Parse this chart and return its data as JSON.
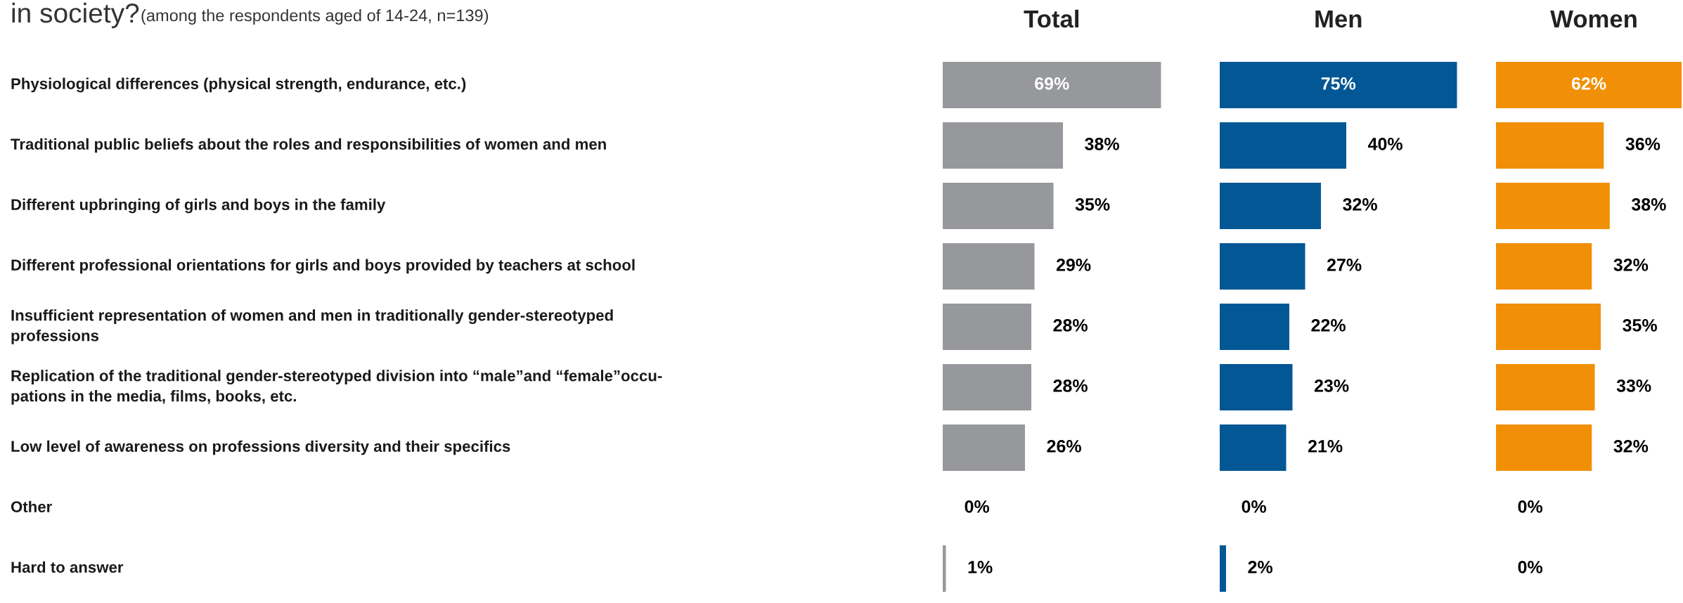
{
  "chart_data": [
    {
      "type": "bar",
      "orientation": "horizontal",
      "title": "Total",
      "annotations": [
        "in society?",
        "(among the respondents aged of 14-24, n=139)"
      ],
      "categories": [
        "Physiological differences (physical strength, endurance, etc.)",
        "Traditional public beliefs about the roles and responsibilities of women and men",
        "Different upbringing of girls and boys in the family",
        "Different professional orientations for girls and boys provided by teachers at school",
        "Insufficient representation of women and men in traditionally gender-stereotyped\nprofessions",
        "Replication of the traditional gender-stereotyped division into “male”and “female”occu-\npations in the media, films, books, etc.",
        "Low level of awareness on professions diversity and their specifics",
        "Other",
        "Hard to answer"
      ],
      "values": [
        69,
        38,
        35,
        29,
        28,
        28,
        26,
        0,
        1
      ],
      "value_labels": [
        "69%",
        "38%",
        "35%",
        "29%",
        "28%",
        "28%",
        "26%",
        "0%",
        "1%"
      ],
      "colors": [
        "#97989c",
        "#97989c",
        "#97989c",
        "#97989c",
        "#97989c",
        "#97989c",
        "#97989c",
        "#97989c",
        "#97989c"
      ]
    },
    {
      "type": "bar",
      "orientation": "horizontal",
      "title": "Men",
      "categories": [
        null,
        null,
        null,
        null,
        null,
        null,
        null,
        null,
        null
      ],
      "values": [
        75,
        40,
        32,
        27,
        22,
        23,
        21,
        0,
        2
      ],
      "value_labels": [
        "75%",
        "40%",
        "32%",
        "27%",
        "22%",
        "23%",
        "21%",
        "0%",
        "2%"
      ],
      "colors": [
        "#035794",
        "#035794",
        "#035794",
        "#035794",
        "#035794",
        "#035794",
        "#035794",
        "#035794",
        "#035794"
      ]
    },
    {
      "type": "bar",
      "orientation": "horizontal",
      "title": "Women",
      "categories": [
        null,
        null,
        null,
        null,
        null,
        null,
        null,
        null,
        null
      ],
      "values": [
        62,
        36,
        38,
        32,
        35,
        33,
        32,
        0,
        0
      ],
      "value_labels": [
        "62%",
        "36%",
        "38%",
        "32%",
        "35%",
        "33%",
        "32%",
        "0%",
        "0%"
      ],
      "colors": [
        "#f18f06",
        "#f18f06",
        "#f18f06",
        "#f18f06",
        "#f18f06",
        "#f18f06",
        "#f18f06",
        "#f18f06",
        "#97989c"
      ]
    }
  ]
}
